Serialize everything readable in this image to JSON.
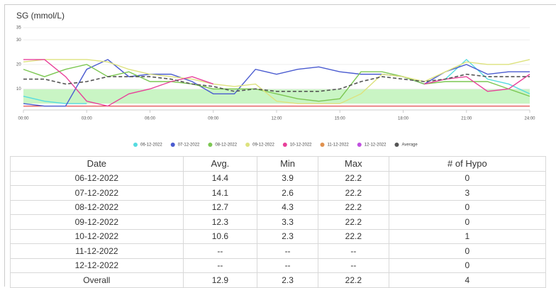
{
  "chart_data": {
    "type": "line",
    "title": "SG (mmol/L)",
    "x": [
      0,
      1,
      2,
      3,
      4,
      5,
      6,
      7,
      8,
      9,
      10,
      11,
      12,
      13,
      14,
      15,
      16,
      17,
      18,
      19,
      20,
      21,
      22,
      23,
      24
    ],
    "xlim": [
      0,
      24
    ],
    "xticks": [
      {
        "value": 0,
        "label": "00:00"
      },
      {
        "value": 3,
        "label": "03:00"
      },
      {
        "value": 6,
        "label": "06:00"
      },
      {
        "value": 9,
        "label": "09:00"
      },
      {
        "value": 12,
        "label": "12:00"
      },
      {
        "value": 15,
        "label": "15:00"
      },
      {
        "value": 18,
        "label": "18:00"
      },
      {
        "value": 21,
        "label": "21:00"
      },
      {
        "value": 24,
        "label": "24:00"
      }
    ],
    "ylim": [
      2,
      35
    ],
    "yticks": [
      10,
      20,
      30,
      35
    ],
    "grid": true,
    "target_range": [
      4,
      10
    ],
    "low_limit": 3,
    "series": [
      {
        "name": "06-12-2022",
        "color": "#55dbe0",
        "dash": false,
        "values": [
          7,
          5,
          4,
          4,
          null,
          null,
          null,
          null,
          null,
          null,
          null,
          null,
          null,
          null,
          null,
          null,
          null,
          null,
          null,
          null,
          14,
          22,
          14,
          12,
          8
        ]
      },
      {
        "name": "07-12-2022",
        "color": "#4a5bd0",
        "dash": false,
        "values": [
          4,
          3,
          3,
          18,
          22,
          15,
          16,
          16,
          13,
          8,
          8,
          18,
          16,
          18,
          19,
          17,
          16,
          16,
          15,
          12,
          17,
          20,
          16,
          17,
          17
        ]
      },
      {
        "name": "08-12-2022",
        "color": "#7cc752",
        "dash": false,
        "values": [
          18,
          15,
          18,
          20,
          15,
          17,
          13,
          13,
          12,
          10,
          10,
          10,
          8,
          6,
          5,
          6,
          17,
          17,
          15,
          12,
          13,
          13,
          13,
          10,
          7
        ]
      },
      {
        "name": "09-12-2022",
        "color": "#dde27e",
        "dash": false,
        "values": [
          21,
          22,
          22,
          22,
          21,
          18,
          16,
          15,
          14,
          12,
          11,
          12,
          5,
          4,
          4,
          4,
          8,
          16,
          15,
          13,
          17,
          21,
          20,
          20,
          22
        ]
      },
      {
        "name": "10-12-2022",
        "color": "#e8409a",
        "dash": false,
        "values": [
          22,
          22,
          15,
          5,
          3,
          8,
          10,
          13,
          15,
          12,
          null,
          null,
          null,
          null,
          null,
          null,
          null,
          null,
          null,
          12,
          14,
          15,
          9,
          10,
          16
        ]
      },
      {
        "name": "11-12-2022",
        "color": "#e0914f",
        "dash": false,
        "values": [
          null,
          null,
          null,
          null,
          null,
          null,
          null,
          null,
          null,
          null,
          null,
          null,
          null,
          null,
          null,
          null,
          null,
          null,
          null,
          null,
          null,
          null,
          null,
          null,
          null
        ]
      },
      {
        "name": "12-12-2022",
        "color": "#c04fe0",
        "dash": false,
        "values": [
          null,
          null,
          null,
          null,
          null,
          null,
          null,
          null,
          null,
          null,
          null,
          null,
          null,
          null,
          null,
          null,
          null,
          null,
          null,
          null,
          null,
          null,
          null,
          null,
          null
        ]
      },
      {
        "name": "Average",
        "color": "#555555",
        "dash": true,
        "values": [
          14,
          14,
          12,
          13,
          15,
          15,
          15,
          14,
          12,
          11,
          9,
          10,
          9,
          9,
          9,
          10,
          13,
          15,
          14,
          13,
          14,
          16,
          15,
          15,
          15
        ]
      }
    ]
  },
  "table": {
    "headers": [
      "Date",
      "Avg.",
      "Min",
      "Max",
      "# of Hypo"
    ],
    "rows": [
      [
        "06-12-2022",
        "14.4",
        "3.9",
        "22.2",
        "0"
      ],
      [
        "07-12-2022",
        "14.1",
        "2.6",
        "22.2",
        "3"
      ],
      [
        "08-12-2022",
        "12.7",
        "4.3",
        "22.2",
        "0"
      ],
      [
        "09-12-2022",
        "12.3",
        "3.3",
        "22.2",
        "0"
      ],
      [
        "10-12-2022",
        "10.6",
        "2.3",
        "22.2",
        "1"
      ],
      [
        "11-12-2022",
        "--",
        "--",
        "--",
        "0"
      ],
      [
        "12-12-2022",
        "--",
        "--",
        "--",
        "0"
      ],
      [
        "Overall",
        "12.9",
        "2.3",
        "22.2",
        "4"
      ]
    ]
  }
}
